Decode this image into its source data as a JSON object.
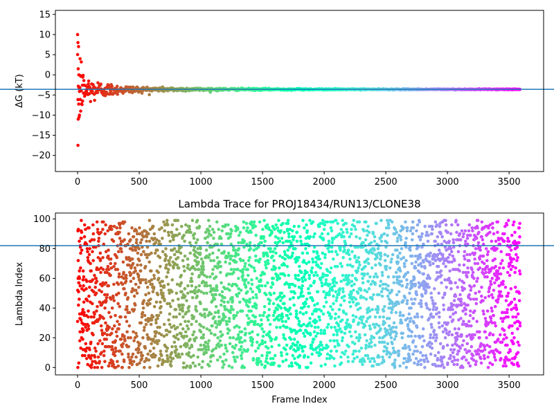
{
  "chart_data": [
    {
      "type": "scatter",
      "title": "",
      "xlabel": "",
      "ylabel": "ΔG (kT)",
      "xlim": [
        -180,
        3780
      ],
      "ylim": [
        -24,
        16
      ],
      "xticks": [
        0,
        500,
        1000,
        1500,
        2000,
        2500,
        3000,
        3500
      ],
      "yticks": [
        -20,
        -15,
        -10,
        -5,
        0,
        5,
        10,
        15
      ],
      "ytick_labels": [
        "−20",
        "−15",
        "−10",
        "−5",
        "0",
        "5",
        "10",
        "15"
      ],
      "colormap": "rainbow (reversed: red at frame 0, violet at last frame)",
      "hline": {
        "y": -3.6,
        "color": "#1f77b4"
      },
      "series_description": "running free-energy estimate per frame; converges from scattered values near frame 0 to about -3.6 kT",
      "notable_points": [
        {
          "x": 0,
          "y": 10.0
        },
        {
          "x": 3,
          "y": 8.0
        },
        {
          "x": 8,
          "y": 7.0
        },
        {
          "x": 20,
          "y": 4.0
        },
        {
          "x": 30,
          "y": 3.2
        },
        {
          "x": 5,
          "y": 1.5
        },
        {
          "x": 10,
          "y": 0.0
        },
        {
          "x": 15,
          "y": -10.0
        },
        {
          "x": 5,
          "y": -11.0
        },
        {
          "x": 12,
          "y": -10.5
        },
        {
          "x": 3,
          "y": -17.5
        },
        {
          "x": 25,
          "y": -9.0
        },
        {
          "x": 40,
          "y": -6.5
        }
      ],
      "converged_value": -3.6,
      "last_frame": 3590,
      "grid": false
    },
    {
      "type": "scatter",
      "title": "Lambda Trace for PROJ18434/RUN13/CLONE38",
      "xlabel": "Frame Index",
      "ylabel": "Lambda Index",
      "xlim": [
        -180,
        3780
      ],
      "ylim": [
        -5,
        104
      ],
      "xticks": [
        0,
        500,
        1000,
        1500,
        2000,
        2500,
        3000,
        3500
      ],
      "yticks": [
        0,
        20,
        40,
        60,
        80,
        100
      ],
      "colormap": "rainbow (reversed: red at frame 0, violet at last frame)",
      "hline": {
        "y": 82,
        "color": "#1f77b4"
      },
      "series_description": "lambda index (0-99) visited at each frame, roughly uniformly spread",
      "n_points": 3600,
      "lambda_range": [
        0,
        99
      ],
      "grid": false
    }
  ],
  "colors": {
    "hline": "#1f77b4",
    "axes": "#000000",
    "background": "#ffffff"
  }
}
